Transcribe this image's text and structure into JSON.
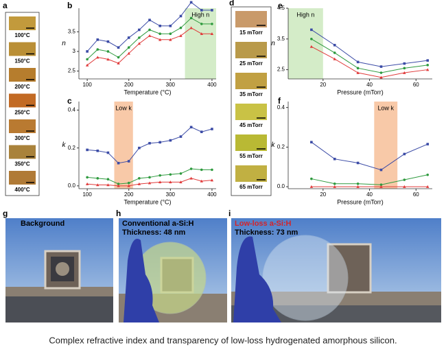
{
  "panel_labels": [
    "a",
    "b",
    "c",
    "d",
    "e",
    "f",
    "g",
    "h",
    "i"
  ],
  "swatches_a": [
    "100°C",
    "150°C",
    "200°C",
    "250°C",
    "300°C",
    "350°C",
    "400°C"
  ],
  "swatches_d": [
    "15 mTorr",
    "25 mTorr",
    "35 mTorr",
    "45 mTorr",
    "55 mTorr",
    "65 mTorr"
  ],
  "chart_data": [
    {
      "type": "line",
      "ylabel": "n",
      "xlabel": "Temperature (°C)",
      "x": [
        100,
        125,
        150,
        175,
        200,
        225,
        250,
        275,
        300,
        325,
        350,
        375,
        400
      ],
      "xlim": [
        80,
        410
      ],
      "xticks": [
        100,
        200,
        300,
        400
      ],
      "ylim": [
        2.3,
        4.1
      ],
      "yticks": [
        2.5,
        3,
        3.5
      ],
      "highlight": {
        "range": [
          335,
          410
        ],
        "label": "High n",
        "color": "#d4ecc8"
      },
      "series": [
        {
          "color": "#3b4ba6",
          "marker": "square",
          "values": [
            3.0,
            3.3,
            3.25,
            3.1,
            3.35,
            3.55,
            3.8,
            3.65,
            3.65,
            3.9,
            4.25,
            4.05,
            4.05
          ]
        },
        {
          "color": "#2e9a3e",
          "marker": "circle",
          "values": [
            2.8,
            3.05,
            3.0,
            2.85,
            3.1,
            3.35,
            3.55,
            3.45,
            3.45,
            3.6,
            3.85,
            3.7,
            3.7
          ]
        },
        {
          "color": "#e03a3a",
          "marker": "triangle",
          "values": [
            2.65,
            2.85,
            2.8,
            2.7,
            2.95,
            3.2,
            3.4,
            3.3,
            3.3,
            3.4,
            3.6,
            3.45,
            3.45
          ]
        }
      ]
    },
    {
      "type": "line",
      "ylabel": "k",
      "xlabel": "Temperature (°C)",
      "x": [
        100,
        125,
        150,
        175,
        200,
        225,
        250,
        275,
        300,
        325,
        350,
        375,
        400
      ],
      "xlim": [
        80,
        410
      ],
      "xticks": [
        100,
        200,
        300,
        400
      ],
      "ylim": [
        -0.015,
        0.445
      ],
      "yticks": [
        {
          "value": 0,
          "label": "0.0"
        },
        0.2,
        0.4
      ],
      "highlight": {
        "range": [
          165,
          210
        ],
        "label": "Low k",
        "color": "#f8c9a8"
      },
      "series": [
        {
          "color": "#3b4ba6",
          "marker": "square",
          "values": [
            0.19,
            0.185,
            0.175,
            0.12,
            0.13,
            0.2,
            0.225,
            0.23,
            0.24,
            0.26,
            0.31,
            0.285,
            0.3
          ]
        },
        {
          "color": "#2e9a3e",
          "marker": "circle",
          "values": [
            0.045,
            0.04,
            0.035,
            0.01,
            0.015,
            0.04,
            0.045,
            0.055,
            0.06,
            0.065,
            0.09,
            0.085,
            0.085
          ]
        },
        {
          "color": "#e03a3a",
          "marker": "triangle",
          "values": [
            0.01,
            0.005,
            0.005,
            0,
            0,
            0.01,
            0.015,
            0.02,
            0.02,
            0.02,
            0.04,
            0.025,
            0.03
          ]
        }
      ]
    },
    {
      "type": "line",
      "ylabel": "n",
      "xlabel": "Pressure (mTorr)",
      "x": [
        15,
        25,
        35,
        45,
        55,
        65
      ],
      "xlim": [
        5,
        67
      ],
      "xticks": [
        20,
        40,
        60
      ],
      "ylim": [
        2.2,
        4.5
      ],
      "yticks": [
        2.5,
        3.5,
        4.5
      ],
      "highlight": {
        "range": [
          5,
          20
        ],
        "label": "High n",
        "color": "#d4ecc8"
      },
      "series": [
        {
          "color": "#3b4ba6",
          "marker": "square",
          "values": [
            3.8,
            3.3,
            2.75,
            2.6,
            2.7,
            2.8
          ]
        },
        {
          "color": "#2e9a3e",
          "marker": "circle",
          "values": [
            3.5,
            3.05,
            2.55,
            2.4,
            2.55,
            2.65
          ]
        },
        {
          "color": "#e03a3a",
          "marker": "triangle",
          "values": [
            3.25,
            2.85,
            2.4,
            2.25,
            2.4,
            2.5
          ]
        }
      ]
    },
    {
      "type": "line",
      "ylabel": "k",
      "xlabel": "Pressure (mTorr)",
      "x": [
        15,
        25,
        35,
        45,
        55,
        65
      ],
      "xlim": [
        5,
        67
      ],
      "xticks": [
        20,
        40,
        60
      ],
      "ylim": [
        -0.01,
        0.43
      ],
      "yticks": [
        {
          "value": 0,
          "label": "0.0"
        },
        0.2,
        0.4
      ],
      "highlight": {
        "range": [
          42,
          52
        ],
        "label": "Low k",
        "color": "#f8c9a8"
      },
      "series": [
        {
          "color": "#3b4ba6",
          "marker": "square",
          "values": [
            0.225,
            0.14,
            0.12,
            0.085,
            0.165,
            0.215
          ]
        },
        {
          "color": "#2e9a3e",
          "marker": "circle",
          "values": [
            0.04,
            0.015,
            0.015,
            0.01,
            0.035,
            0.06
          ]
        },
        {
          "color": "#e03a3a",
          "marker": "triangle",
          "values": [
            0,
            0,
            0,
            0,
            0,
            0
          ]
        }
      ]
    }
  ],
  "photos": [
    {
      "title": "Background"
    },
    {
      "title": "Conventional a-Si:H",
      "subtitle": "Thickness: 48 nm"
    },
    {
      "title": "Low-loss a-Si:H",
      "subtitle": "Thickness: 73 nm"
    }
  ],
  "caption": "Complex refractive index and transparency of low-loss hydrogenated amorphous silicon."
}
